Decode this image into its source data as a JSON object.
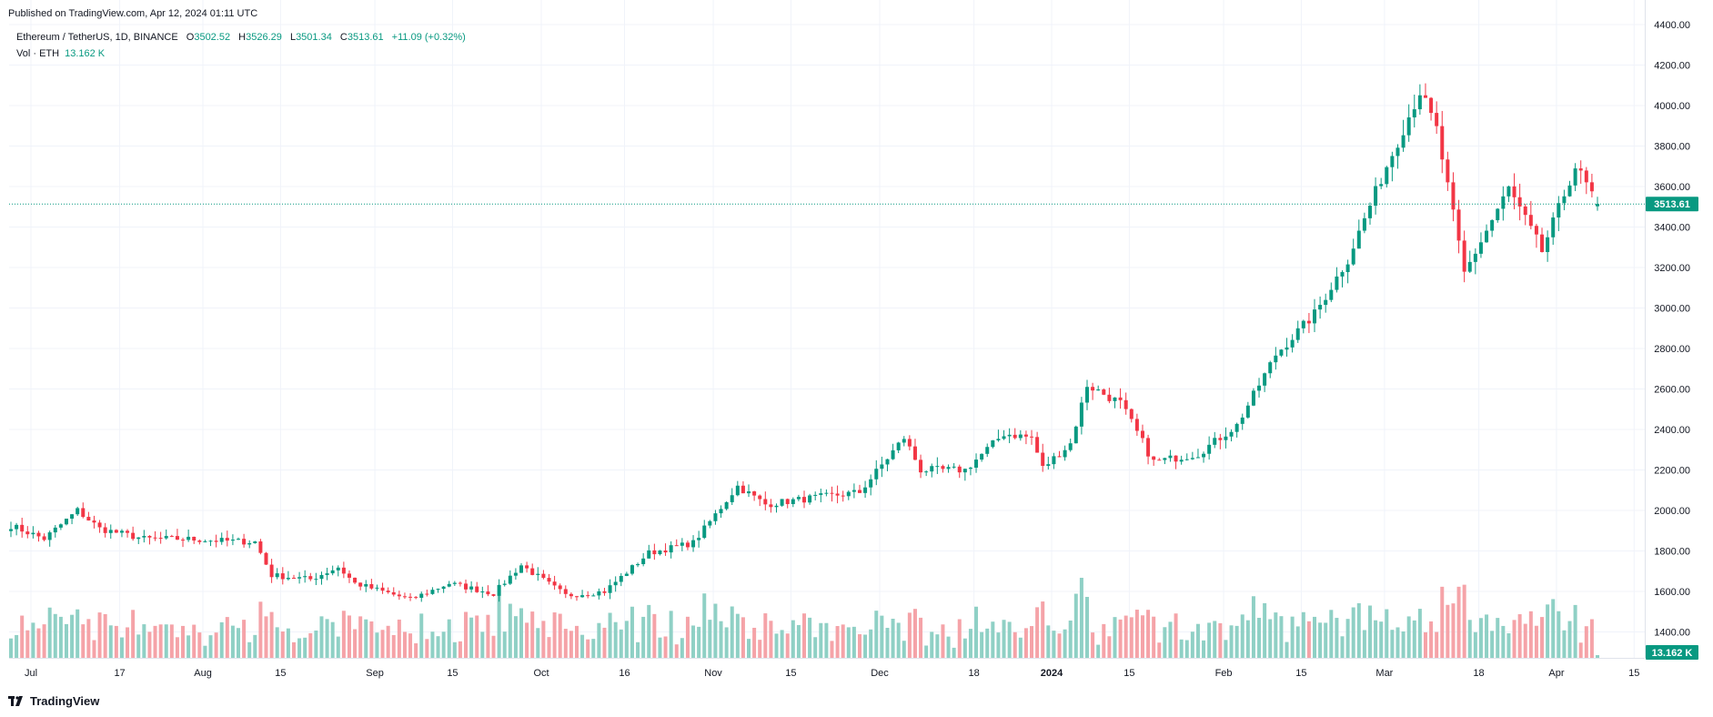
{
  "header": {
    "published": "Published on TradingView.com, Apr 12, 2024 01:11 UTC",
    "symbol": "Ethereum / TetherUS, 1D, BINANCE",
    "open_label": "O",
    "open": "3502.52",
    "high_label": "H",
    "high": "3526.29",
    "low_label": "L",
    "low": "3501.34",
    "close_label": "C",
    "close": "3513.61",
    "change": "+11.09 (+0.32%)",
    "vol_label": "Vol · ETH",
    "vol_value": "13.162 K"
  },
  "footer": {
    "brand": "TradingView",
    "logo_icon": "tradingview-logo-icon"
  },
  "colors": {
    "up": "#089981",
    "down": "#f23645",
    "vol_up": "#8fd0c5",
    "vol_down": "#f5a3a8",
    "grid": "#f0f3fa",
    "price_line": "#089981"
  },
  "chart_data": {
    "type": "candlestick",
    "interval": "1D",
    "grid": true,
    "price_axis": {
      "ticks": [
        "4400.00",
        "4200.00",
        "4000.00",
        "3800.00",
        "3600.00",
        "3400.00",
        "3200.00",
        "3000.00",
        "2800.00",
        "2600.00",
        "2400.00",
        "2200.00",
        "2000.00",
        "1800.00",
        "1600.00",
        "1400.00"
      ],
      "range": [
        1270,
        4420
      ]
    },
    "time_axis": {
      "ticks": [
        "Jul",
        "17",
        "Aug",
        "15",
        "Sep",
        "15",
        "Oct",
        "16",
        "Nov",
        "15",
        "Dec",
        "18",
        "2024",
        "15",
        "Feb",
        "15",
        "Mar",
        "18",
        "Apr",
        "15"
      ]
    },
    "last_price_label": "3513.61",
    "last_volume_label": "13.162 K",
    "ohlc_anchors_close": [
      [
        "2023-07-01",
        1925
      ],
      [
        "2023-07-07",
        1860
      ],
      [
        "2023-07-13",
        2000
      ],
      [
        "2023-07-17",
        1910
      ],
      [
        "2023-07-25",
        1860
      ],
      [
        "2023-08-01",
        1860
      ],
      [
        "2023-08-08",
        1850
      ],
      [
        "2023-08-14",
        1845
      ],
      [
        "2023-08-17",
        1680
      ],
      [
        "2023-08-24",
        1660
      ],
      [
        "2023-08-29",
        1720
      ],
      [
        "2023-09-01",
        1640
      ],
      [
        "2023-09-11",
        1560
      ],
      [
        "2023-09-18",
        1640
      ],
      [
        "2023-09-26",
        1590
      ],
      [
        "2023-10-01",
        1730
      ],
      [
        "2023-10-09",
        1580
      ],
      [
        "2023-10-16",
        1600
      ],
      [
        "2023-10-24",
        1790
      ],
      [
        "2023-11-01",
        1840
      ],
      [
        "2023-11-09",
        2120
      ],
      [
        "2023-11-14",
        2030
      ],
      [
        "2023-11-22",
        2060
      ],
      [
        "2023-12-01",
        2090
      ],
      [
        "2023-12-09",
        2360
      ],
      [
        "2023-12-12",
        2200
      ],
      [
        "2023-12-20",
        2200
      ],
      [
        "2023-12-27",
        2380
      ],
      [
        "2024-01-01",
        2360
      ],
      [
        "2024-01-03",
        2210
      ],
      [
        "2024-01-08",
        2330
      ],
      [
        "2024-01-11",
        2620
      ],
      [
        "2024-01-17",
        2530
      ],
      [
        "2024-01-23",
        2240
      ],
      [
        "2024-01-31",
        2280
      ],
      [
        "2024-02-07",
        2420
      ],
      [
        "2024-02-14",
        2770
      ],
      [
        "2024-02-21",
        2970
      ],
      [
        "2024-02-27",
        3240
      ],
      [
        "2024-03-04",
        3640
      ],
      [
        "2024-03-11",
        4070
      ],
      [
        "2024-03-14",
        3880
      ],
      [
        "2024-03-19",
        3170
      ],
      [
        "2024-03-22",
        3330
      ],
      [
        "2024-03-27",
        3590
      ],
      [
        "2024-04-02",
        3280
      ],
      [
        "2024-04-08",
        3700
      ],
      [
        "2024-04-12",
        3514
      ]
    ]
  }
}
